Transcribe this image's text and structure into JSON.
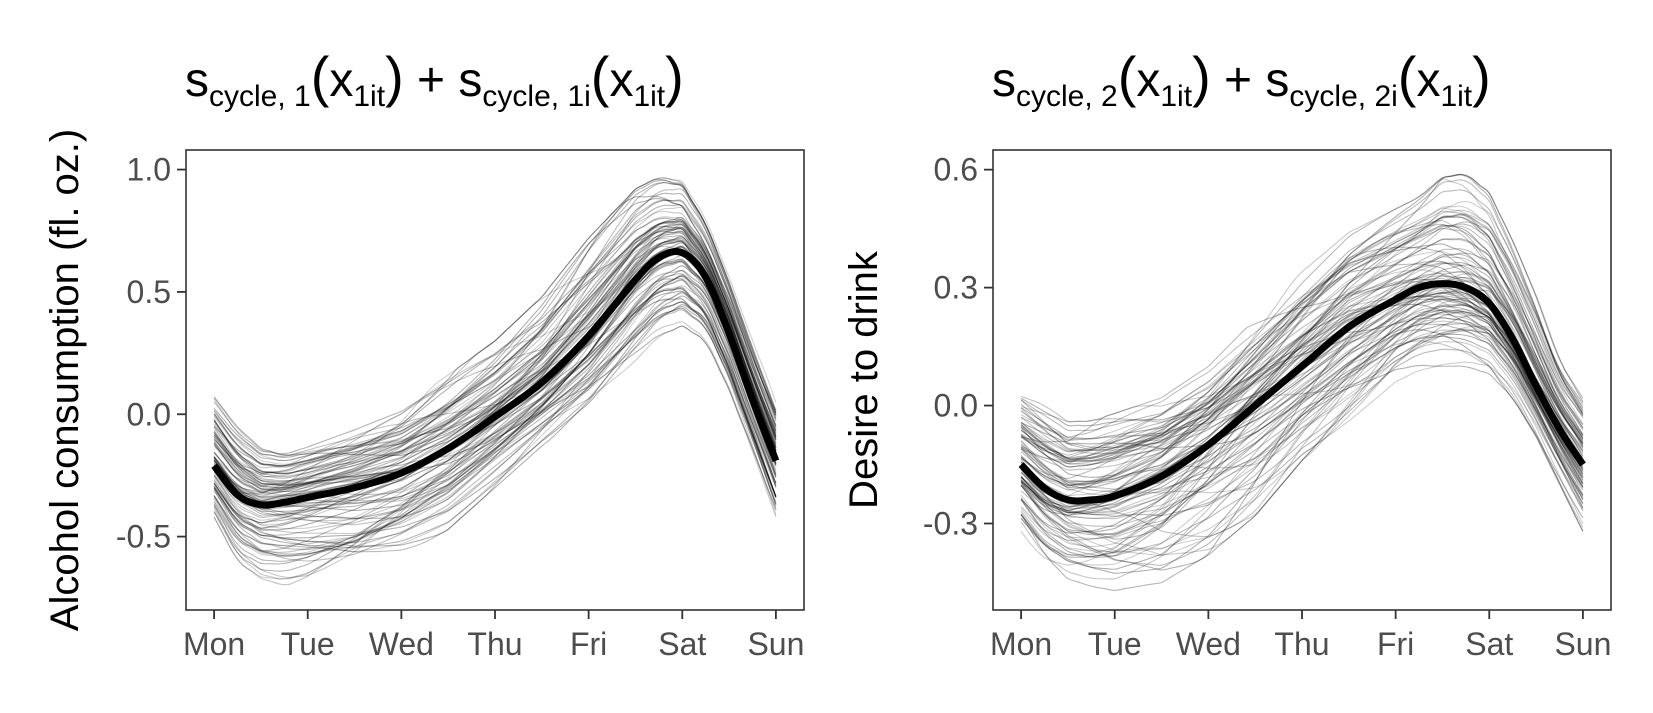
{
  "chart_data": [
    {
      "type": "line",
      "title_parts": [
        "s",
        "cycle, 1",
        "(",
        "x",
        "1it",
        ")",
        " + ",
        "s",
        "cycle, 1i",
        "(",
        "x",
        "1it",
        ")"
      ],
      "ylabel": "Alcohol consumption (fl. oz.)",
      "xlabel": "",
      "categories": [
        "Mon",
        "Tue",
        "Wed",
        "Thu",
        "Fri",
        "Sat",
        "Sun"
      ],
      "xlim": [
        -0.3,
        6.3
      ],
      "ylim": [
        -0.8,
        1.08
      ],
      "yticks": [
        -0.5,
        0.0,
        0.5,
        1.0
      ],
      "ytick_labels": [
        "-0.5",
        "0.0",
        "0.5",
        "1.0"
      ],
      "grid": false,
      "legend": "none",
      "colors": {
        "mean": "#000000",
        "individual": "#000000"
      },
      "mean_curve": {
        "x": [
          0,
          0.25,
          0.5,
          0.75,
          1,
          1.5,
          2,
          2.5,
          3,
          3.5,
          4,
          4.5,
          4.75,
          5,
          5.25,
          5.5,
          5.75,
          6
        ],
        "y": [
          -0.21,
          -0.33,
          -0.37,
          -0.36,
          -0.34,
          -0.3,
          -0.24,
          -0.14,
          -0.01,
          0.13,
          0.32,
          0.55,
          0.64,
          0.66,
          0.56,
          0.33,
          0.06,
          -0.19
        ]
      },
      "individual_curves": {
        "count": 100,
        "x": [
          0,
          0.25,
          0.5,
          0.75,
          1,
          1.5,
          2,
          2.5,
          3,
          3.5,
          4,
          4.5,
          4.75,
          5,
          5.25,
          5.5,
          5.75,
          6
        ],
        "y_min": [
          -0.42,
          -0.6,
          -0.67,
          -0.7,
          -0.7,
          -0.66,
          -0.58,
          -0.47,
          -0.3,
          -0.13,
          0.02,
          0.22,
          0.32,
          0.36,
          0.3,
          0.1,
          -0.15,
          -0.42
        ],
        "y_max": [
          0.08,
          -0.05,
          -0.13,
          -0.15,
          -0.12,
          -0.05,
          0.03,
          0.16,
          0.3,
          0.48,
          0.72,
          0.92,
          0.97,
          0.95,
          0.8,
          0.56,
          0.3,
          0.06
        ]
      }
    },
    {
      "type": "line",
      "title_parts": [
        "s",
        "cycle, 2",
        "(",
        "x",
        "1it",
        ")",
        " + ",
        "s",
        "cycle, 2i",
        "(",
        "x",
        "1it",
        ")"
      ],
      "ylabel": "Desire to drink",
      "xlabel": "",
      "categories": [
        "Mon",
        "Tue",
        "Wed",
        "Thu",
        "Fri",
        "Sat",
        "Sun"
      ],
      "xlim": [
        -0.3,
        6.3
      ],
      "ylim": [
        -0.52,
        0.65
      ],
      "yticks": [
        -0.3,
        0.0,
        0.3,
        0.6
      ],
      "ytick_labels": [
        "-0.3",
        "0.0",
        "0.3",
        "0.6"
      ],
      "grid": false,
      "legend": "none",
      "colors": {
        "mean": "#000000",
        "individual": "#000000"
      },
      "mean_curve": {
        "x": [
          0,
          0.25,
          0.5,
          0.75,
          1,
          1.5,
          2,
          2.5,
          3,
          3.5,
          4,
          4.25,
          4.5,
          4.75,
          5,
          5.25,
          5.5,
          5.75,
          6
        ],
        "y": [
          -0.15,
          -0.21,
          -0.24,
          -0.24,
          -0.23,
          -0.18,
          -0.1,
          0.0,
          0.1,
          0.2,
          0.27,
          0.3,
          0.31,
          0.3,
          0.26,
          0.17,
          0.05,
          -0.06,
          -0.15
        ]
      },
      "individual_curves": {
        "count": 100,
        "x": [
          0,
          0.25,
          0.5,
          0.75,
          1,
          1.5,
          2,
          2.5,
          3,
          3.5,
          4,
          4.25,
          4.5,
          4.75,
          5,
          5.25,
          5.5,
          5.75,
          6
        ],
        "y_min": [
          -0.32,
          -0.4,
          -0.44,
          -0.46,
          -0.47,
          -0.45,
          -0.38,
          -0.28,
          -0.14,
          -0.04,
          0.06,
          0.09,
          0.1,
          0.1,
          0.08,
          0.02,
          -0.08,
          -0.2,
          -0.32
        ],
        "y_max": [
          0.04,
          0.0,
          -0.04,
          -0.04,
          -0.02,
          0.02,
          0.1,
          0.22,
          0.34,
          0.44,
          0.5,
          0.53,
          0.58,
          0.59,
          0.54,
          0.42,
          0.28,
          0.12,
          0.03
        ]
      }
    }
  ]
}
